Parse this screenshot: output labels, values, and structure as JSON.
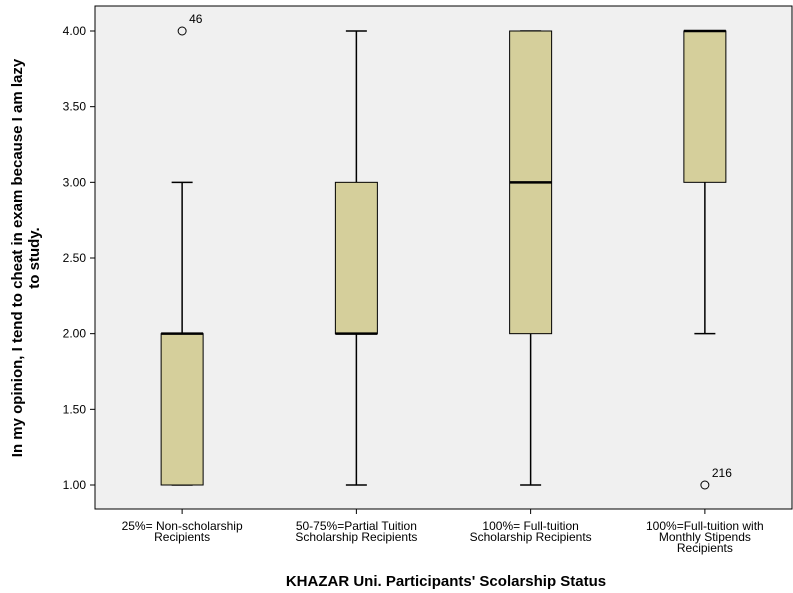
{
  "chart_data": {
    "type": "boxplot",
    "xlabel": "KHAZAR Uni. Participants' Scolarship Status",
    "ylabel_lines": [
      "In my opinion, I tend to cheat in exam because I am lazy",
      "to study."
    ],
    "ylim": [
      0.85,
      4.17
    ],
    "yticks": [
      1.0,
      1.5,
      2.0,
      2.5,
      3.0,
      3.5,
      4.0
    ],
    "ytick_labels": [
      "1.00",
      "1.50",
      "2.00",
      "2.50",
      "3.00",
      "3.50",
      "4.00"
    ],
    "box_color": "#d5cf9b",
    "plot_background": "#f0f0f0",
    "grid": false,
    "categories": [
      {
        "label_lines": [
          "25%= Non-scholarship",
          "Recipients"
        ],
        "whisker_low": 1.0,
        "q1": 1.0,
        "median": 2.0,
        "q3": 2.0,
        "whisker_high": 3.0,
        "outliers": [
          {
            "value": 4.0,
            "label": "46"
          }
        ]
      },
      {
        "label_lines": [
          "50-75%=Partial Tuition",
          "Scholarship Recipients"
        ],
        "whisker_low": 1.0,
        "q1": 2.0,
        "median": 2.0,
        "q3": 3.0,
        "whisker_high": 4.0,
        "outliers": []
      },
      {
        "label_lines": [
          "100%= Full-tuition",
          "Scholarship Recipients"
        ],
        "whisker_low": 1.0,
        "q1": 2.0,
        "median": 3.0,
        "q3": 4.0,
        "whisker_high": 4.0,
        "outliers": []
      },
      {
        "label_lines": [
          "100%=Full-tuition with",
          "Monthly Stipends",
          "Recipients"
        ],
        "whisker_low": 2.0,
        "q1": 3.0,
        "median": 4.0,
        "q3": 4.0,
        "whisker_high": 4.0,
        "outliers": [
          {
            "value": 1.0,
            "label": "216"
          }
        ]
      }
    ]
  }
}
